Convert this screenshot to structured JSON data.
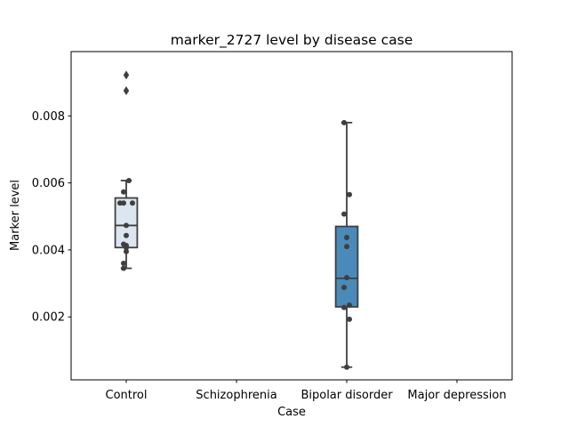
{
  "chart_data": {
    "type": "box",
    "title": "marker_2727 level by disease case",
    "xlabel": "Case",
    "ylabel": "Marker level",
    "categories": [
      "Control",
      "Schizophrenia",
      "Bipolar disorder",
      "Major depression"
    ],
    "ylim": [
      0.00012,
      0.00992
    ],
    "yticks": [
      0.002,
      0.004,
      0.006,
      0.008
    ],
    "ytick_labels": [
      "0.002",
      "0.004",
      "0.006",
      "0.008"
    ],
    "grid": false,
    "legend": "none",
    "boxes": [
      {
        "category": "Control",
        "color": "#dce6f0",
        "whisker_low": 0.00345,
        "q1": 0.00407,
        "median": 0.00473,
        "q3": 0.00555,
        "whisker_high": 0.00607,
        "outliers": [
          0.00922,
          0.00875
        ],
        "points": [
          0.00607,
          0.00573,
          0.0054,
          0.0054,
          0.0054,
          0.00473,
          0.00443,
          0.00417,
          0.00413,
          0.00407,
          0.00395,
          0.0036,
          0.00345
        ]
      },
      {
        "category": "Bipolar disorder",
        "color": "#4a8ab8",
        "whisker_low": 0.0005,
        "q1": 0.0023,
        "median": 0.00315,
        "q3": 0.0047,
        "whisker_high": 0.0078,
        "outliers": [],
        "points": [
          0.0078,
          0.00565,
          0.00507,
          0.00437,
          0.0041,
          0.00317,
          0.00288,
          0.00235,
          0.00228,
          0.00193,
          0.0005
        ]
      }
    ]
  }
}
